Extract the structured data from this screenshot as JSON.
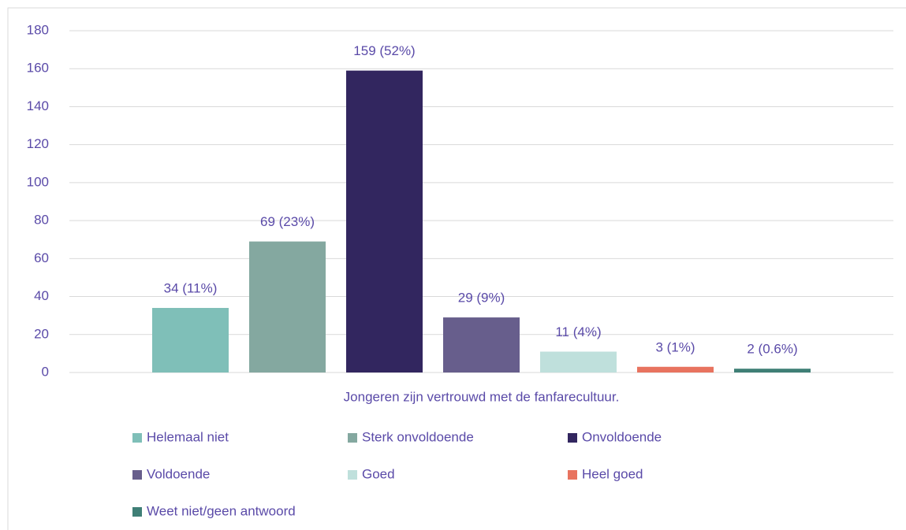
{
  "chart_data": {
    "type": "bar",
    "categories": [
      "Jongeren zijn vertrouwd met de fanfarecultuur."
    ],
    "series": [
      {
        "name": "Helemaal niet",
        "color": "#7fbfb8",
        "values": [
          34
        ],
        "value_labels": [
          "34 (11%)"
        ]
      },
      {
        "name": "Sterk onvoldoende",
        "color": "#84a8a0",
        "values": [
          69
        ],
        "value_labels": [
          "69 (23%)"
        ]
      },
      {
        "name": "Onvoldoende",
        "color": "#32265f",
        "values": [
          159
        ],
        "value_labels": [
          "159 (52%)"
        ]
      },
      {
        "name": "Voldoende",
        "color": "#675e8c",
        "values": [
          29
        ],
        "value_labels": [
          "29 (9%)"
        ]
      },
      {
        "name": "Goed",
        "color": "#bfe0dc",
        "values": [
          11
        ],
        "value_labels": [
          "11 (4%)"
        ]
      },
      {
        "name": "Heel goed",
        "color": "#e8735f",
        "values": [
          3
        ],
        "value_labels": [
          "3 (1%)"
        ]
      },
      {
        "name": "Weet niet/geen antwoord",
        "color": "#3f7f76",
        "values": [
          2
        ],
        "value_labels": [
          "2 (0.6%)"
        ]
      }
    ],
    "ylim": [
      0,
      180
    ],
    "yticks": [
      0,
      20,
      40,
      60,
      80,
      100,
      120,
      140,
      160,
      180
    ],
    "grid": true,
    "legend": "bottom"
  }
}
